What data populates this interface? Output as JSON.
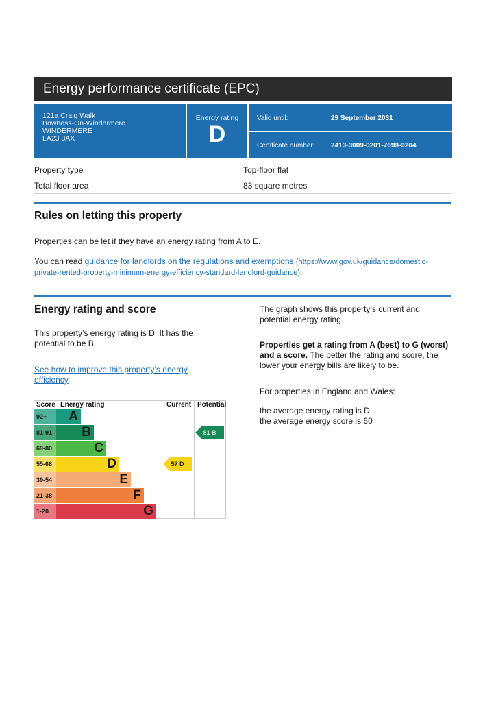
{
  "title": "Energy performance certificate (EPC)",
  "address": [
    "121a Craig Walk",
    "Bowness-On-Windermere",
    "WINDERMERE",
    "LA23 3AX"
  ],
  "energy_rating": {
    "label": "Energy rating",
    "value": "D"
  },
  "valid_until": {
    "label": "Valid until:",
    "value": "29 September 2031"
  },
  "certificate": {
    "label": "Certificate number:",
    "value": "2413-3009-0201-7699-9204"
  },
  "property": [
    {
      "label": "Property type",
      "value": "Top-floor flat"
    },
    {
      "label": "Total floor area",
      "value": "83 square metres"
    }
  ],
  "rules": {
    "heading": "Rules on letting this property",
    "p1": "Properties can be let if they have an energy rating from A to E.",
    "p2_prefix": "You can read ",
    "link": "guidance for landlords on the regulations and exemptions",
    "link_url": "(https://www.gov.uk/guidance/domestic-private-rented-property-minimum-energy-efficiency-standard-landlord-guidance)",
    "p2_suffix": "."
  },
  "score": {
    "heading": "Energy rating and score",
    "p1": "This property’s energy rating is D. It has the potential to be B.",
    "improve_link": "See how to improve this property’s energy efficiency",
    "right_p1": "The graph shows this property’s current and potential energy rating.",
    "right_bold": "Properties get a rating from A (best) to G (worst) and a score.",
    "right_p2": " The better the rating and score, the lower your energy bills are likely to be.",
    "right_p3": "For properties in England and Wales:",
    "right_p4": "the average energy rating is D",
    "right_p5": "the average energy score is 60"
  },
  "chart": {
    "headers": {
      "score": "Score",
      "rating": "Energy rating",
      "current": "Current",
      "potential": "Potential"
    },
    "bands": [
      {
        "range": "92+",
        "letter": "A",
        "color": "#1a9a7e",
        "tint": "#4fb39c"
      },
      {
        "range": "81-91",
        "letter": "B",
        "color": "#178a58",
        "tint": "#48a57d"
      },
      {
        "range": "69-80",
        "letter": "C",
        "color": "#4cb848",
        "tint": "#86d07a"
      },
      {
        "range": "55-68",
        "letter": "D",
        "color": "#f7d417",
        "tint": "#fae06a"
      },
      {
        "range": "39-54",
        "letter": "E",
        "color": "#f4ab76",
        "tint": "#f7c39c"
      },
      {
        "range": "21-38",
        "letter": "F",
        "color": "#ee7f3c",
        "tint": "#f3a575"
      },
      {
        "range": "1-20",
        "letter": "G",
        "color": "#dc3b4b",
        "tint": "#e77882"
      }
    ],
    "current": {
      "text": "57 D",
      "score": 57,
      "band": 3
    },
    "potential": {
      "text": "81 B",
      "score": 81,
      "band": 1
    }
  }
}
